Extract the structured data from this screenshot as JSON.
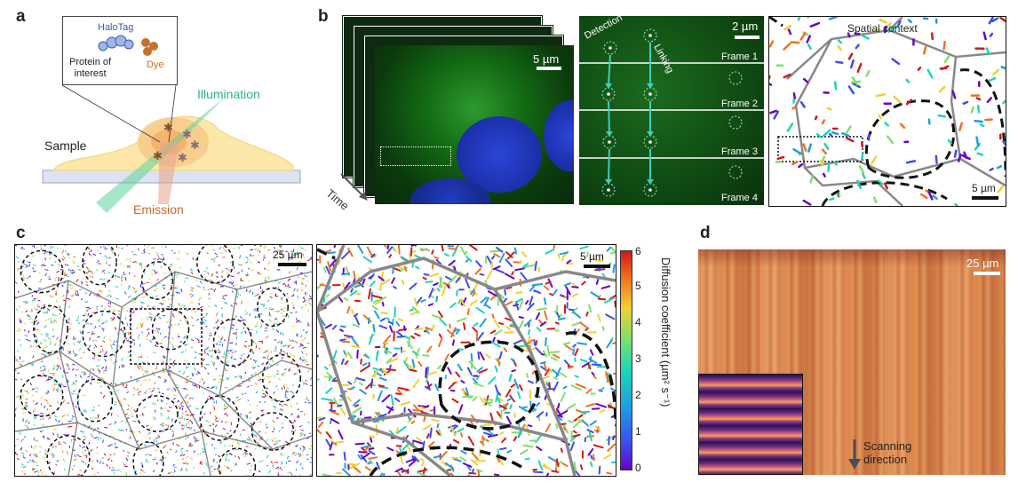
{
  "figure": {
    "panel_a": {
      "label": "a",
      "halotag": "HaloTag",
      "protein": "Protein of\ninterest",
      "dye": "Dye",
      "illumination": "Illumination",
      "sample": "Sample",
      "emission": "Emission"
    },
    "panel_b": {
      "label": "b",
      "scale_left": "5 µm",
      "time": "Time",
      "detection": "Detection",
      "linking": "Linking",
      "scale_mid": "2 µm",
      "frames": [
        "Frame 1",
        "Frame 2",
        "Frame 3",
        "Frame 4"
      ],
      "spatial_context": "Spatial context",
      "scale_right": "5 µm"
    },
    "panel_c": {
      "label": "c",
      "scale_left": "25 µm",
      "scale_right": "5 µm",
      "colorbar_label": "Diffusion coefficient (µm² s⁻¹)",
      "colorbar_ticks": [
        "0",
        "1",
        "2",
        "3",
        "4",
        "5",
        "6"
      ]
    },
    "panel_d": {
      "label": "d",
      "scale": "25 µm",
      "scanning": "Scanning\ndirection"
    }
  },
  "colors": {
    "teal": "#3ecfc0",
    "green": "#2faa6a",
    "orange": "#c8692a",
    "blue_tag": "#6d8fd6",
    "nucleus": "#1f3fd0",
    "cell_boundary": "#8a8a8a",
    "magma_bg": "#d9824a"
  }
}
